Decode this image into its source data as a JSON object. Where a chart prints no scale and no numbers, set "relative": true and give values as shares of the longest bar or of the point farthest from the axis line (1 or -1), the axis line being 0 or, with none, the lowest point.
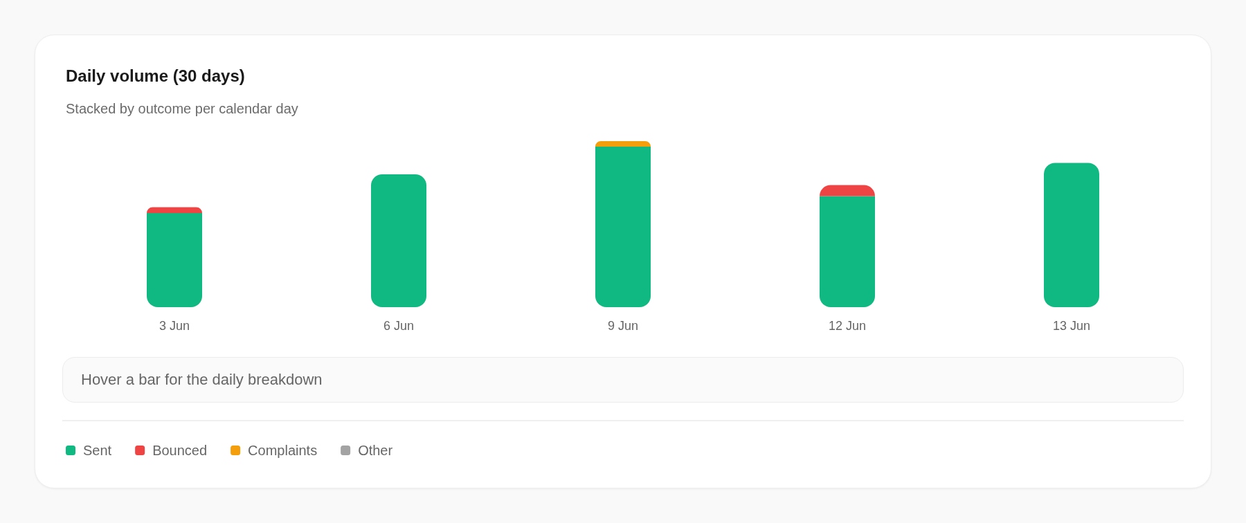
{
  "chart_data": {
    "type": "bar",
    "title": "Daily volume (30 days)",
    "subtitle": "Stacked by outcome per calendar day",
    "categories": [
      "3 Jun",
      "6 Jun",
      "9 Jun",
      "12 Jun",
      "13 Jun"
    ],
    "stacked": true,
    "relative": true,
    "legend": "bottom left",
    "series": [
      {
        "name": "Sent",
        "color": "#10b981",
        "values": [
          0.567,
          0.8,
          0.967,
          0.669,
          0.869
        ]
      },
      {
        "name": "Bounced",
        "color": "#ef4444",
        "values": [
          0.035,
          null,
          null,
          0.066,
          null
        ]
      },
      {
        "name": "Complaints",
        "color": "#f59e0b",
        "values": [
          null,
          null,
          0.033,
          null,
          null
        ]
      },
      {
        "name": "Other",
        "color": "#a3a3a3",
        "values": [
          null,
          null,
          null,
          null,
          null
        ]
      }
    ],
    "annotations": [
      "Hover a bar for the daily breakdown"
    ]
  }
}
